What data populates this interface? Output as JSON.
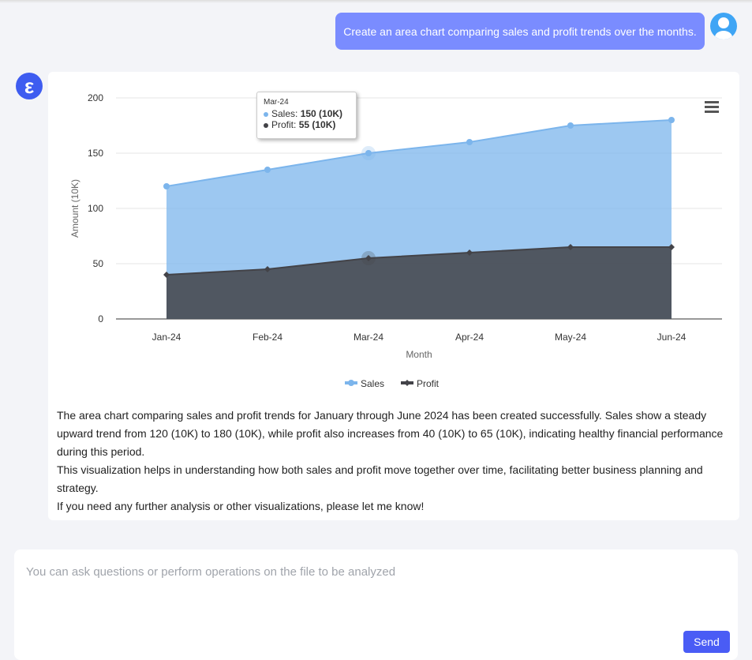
{
  "user_message": "Create an area chart comparing sales and profit trends over the months.",
  "bot_avatar_letter": "ε",
  "chart_data": {
    "type": "area",
    "categories": [
      "Jan-24",
      "Feb-24",
      "Mar-24",
      "Apr-24",
      "May-24",
      "Jun-24"
    ],
    "series": [
      {
        "name": "Sales",
        "values": [
          120,
          135,
          150,
          160,
          175,
          180
        ],
        "color": "#7cb5ec"
      },
      {
        "name": "Profit",
        "values": [
          40,
          45,
          55,
          60,
          65,
          65
        ],
        "color": "#434348"
      }
    ],
    "xlabel": "Month",
    "ylabel": "Amount (10K)",
    "ylim": [
      0,
      200
    ],
    "yticks": [
      "0",
      "50",
      "100",
      "150",
      "200"
    ],
    "grid": true,
    "legend": "bottom",
    "tooltip": {
      "header": "Mar-24",
      "rows": [
        {
          "label": "Sales: ",
          "value": "150 (10K)"
        },
        {
          "label": "Profit: ",
          "value": "55 (10K)"
        }
      ]
    }
  },
  "response": [
    "The area chart comparing sales and profit trends for January through June 2024 has been created successfully. Sales show a steady upward trend from 120 (10K) to 180 (10K), while profit also increases from 40 (10K) to 65 (10K), indicating healthy financial performance during this period.",
    "This visualization helps in understanding how both sales and profit move together over time, facilitating better business planning and strategy.",
    "If you need any further analysis or other visualizations, please let me know!"
  ],
  "input": {
    "placeholder": "You can ask questions or perform operations on the file to be analyzed",
    "send_label": "Send"
  }
}
